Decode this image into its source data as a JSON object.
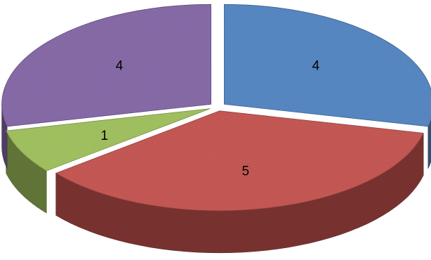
{
  "chart_data": {
    "type": "pie",
    "style": "3d-exploded",
    "legend": "none",
    "slices": [
      {
        "value": 4,
        "label": "4",
        "color": "#4f81bd"
      },
      {
        "value": 5,
        "label": "5",
        "color": "#c0504d"
      },
      {
        "value": 1,
        "label": "1",
        "color": "#9bbb59"
      },
      {
        "value": 4,
        "label": "4",
        "color": "#8064a2"
      }
    ]
  }
}
